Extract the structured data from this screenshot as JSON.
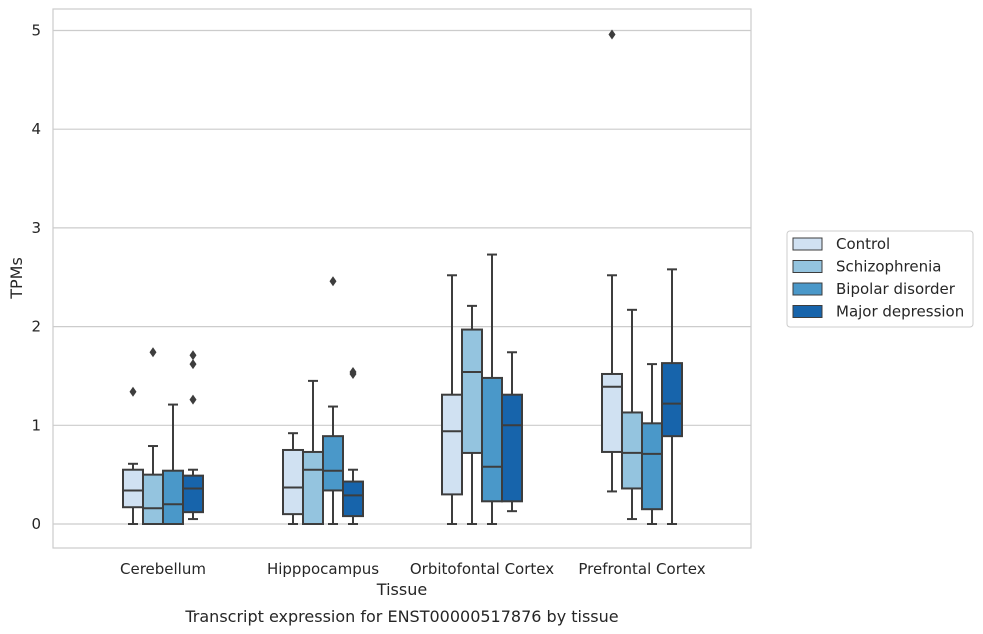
{
  "chart_data": {
    "type": "box",
    "title": "Transcript expression for ENST00000517876 by tissue",
    "xlabel": "Tissue",
    "ylabel": "TPMs",
    "ylim": [
      -0.25,
      5.22
    ],
    "yticks": [
      0,
      1,
      2,
      3,
      4,
      5
    ],
    "grid": "horizontal",
    "legend_position": "right",
    "categories": [
      "Cerebellum",
      "Hipppocampus",
      "Orbitofontal Cortex",
      "Prefrontal Cortex"
    ],
    "series": [
      {
        "name": "Control",
        "color": "#d0e1f2",
        "boxes": [
          {
            "whislo": 0.0,
            "q1": 0.17,
            "med": 0.34,
            "q3": 0.55,
            "whishi": 0.61,
            "fliers": [
              1.34
            ]
          },
          {
            "whislo": 0.0,
            "q1": 0.1,
            "med": 0.37,
            "q3": 0.75,
            "whishi": 0.92,
            "fliers": []
          },
          {
            "whislo": 0.0,
            "q1": 0.3,
            "med": 0.94,
            "q3": 1.31,
            "whishi": 2.52,
            "fliers": []
          },
          {
            "whislo": 0.33,
            "q1": 0.73,
            "med": 1.39,
            "q3": 1.52,
            "whishi": 2.52,
            "fliers": [
              4.96
            ]
          }
        ]
      },
      {
        "name": "Schizophrenia",
        "color": "#94c4df",
        "boxes": [
          {
            "whislo": 0.0,
            "q1": 0.0,
            "med": 0.16,
            "q3": 0.5,
            "whishi": 0.79,
            "fliers": [
              1.74
            ]
          },
          {
            "whislo": 0.0,
            "q1": 0.0,
            "med": 0.55,
            "q3": 0.73,
            "whishi": 1.45,
            "fliers": []
          },
          {
            "whislo": 0.0,
            "q1": 0.72,
            "med": 1.54,
            "q3": 1.97,
            "whishi": 2.21,
            "fliers": []
          },
          {
            "whislo": 0.05,
            "q1": 0.36,
            "med": 0.72,
            "q3": 1.13,
            "whishi": 2.17,
            "fliers": []
          }
        ]
      },
      {
        "name": "Bipolar disorder",
        "color": "#4a98c9",
        "boxes": [
          {
            "whislo": 0.0,
            "q1": 0.0,
            "med": 0.2,
            "q3": 0.54,
            "whishi": 1.21,
            "fliers": []
          },
          {
            "whislo": 0.0,
            "q1": 0.34,
            "med": 0.54,
            "q3": 0.89,
            "whishi": 1.19,
            "fliers": [
              2.46
            ]
          },
          {
            "whislo": 0.0,
            "q1": 0.23,
            "med": 0.58,
            "q3": 1.48,
            "whishi": 2.73,
            "fliers": []
          },
          {
            "whislo": 0.0,
            "q1": 0.15,
            "med": 0.71,
            "q3": 1.02,
            "whishi": 1.62,
            "fliers": []
          }
        ]
      },
      {
        "name": "Major depression",
        "color": "#1764ab",
        "boxes": [
          {
            "whislo": 0.05,
            "q1": 0.12,
            "med": 0.36,
            "q3": 0.49,
            "whishi": 0.55,
            "fliers": [
              1.26,
              1.62,
              1.71
            ]
          },
          {
            "whislo": 0.0,
            "q1": 0.08,
            "med": 0.29,
            "q3": 0.43,
            "whishi": 0.55,
            "fliers": [
              1.52,
              1.54
            ]
          },
          {
            "whislo": 0.13,
            "q1": 0.23,
            "med": 1.0,
            "q3": 1.31,
            "whishi": 1.74,
            "fliers": []
          },
          {
            "whislo": 0.0,
            "q1": 0.89,
            "med": 1.22,
            "q3": 1.63,
            "whishi": 2.58,
            "fliers": []
          }
        ]
      }
    ]
  }
}
